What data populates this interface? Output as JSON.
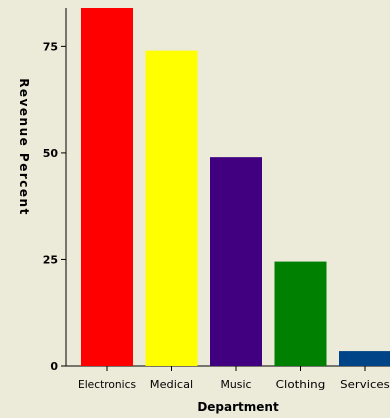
{
  "chart_data": {
    "type": "bar",
    "categories": [
      "Electronics",
      "Medical",
      "Music",
      "Clothing",
      "Services"
    ],
    "values": [
      84,
      74,
      49,
      24.5,
      3.5
    ],
    "colors": [
      "#ff0000",
      "#ffff00",
      "#400080",
      "#008000",
      "#004488"
    ],
    "xlabel": "Department",
    "ylabel": "Revenue Percent",
    "ylim": [
      0,
      84
    ],
    "yticks": [
      0,
      25,
      50,
      75
    ],
    "grid": false,
    "background": "#ecead9"
  }
}
